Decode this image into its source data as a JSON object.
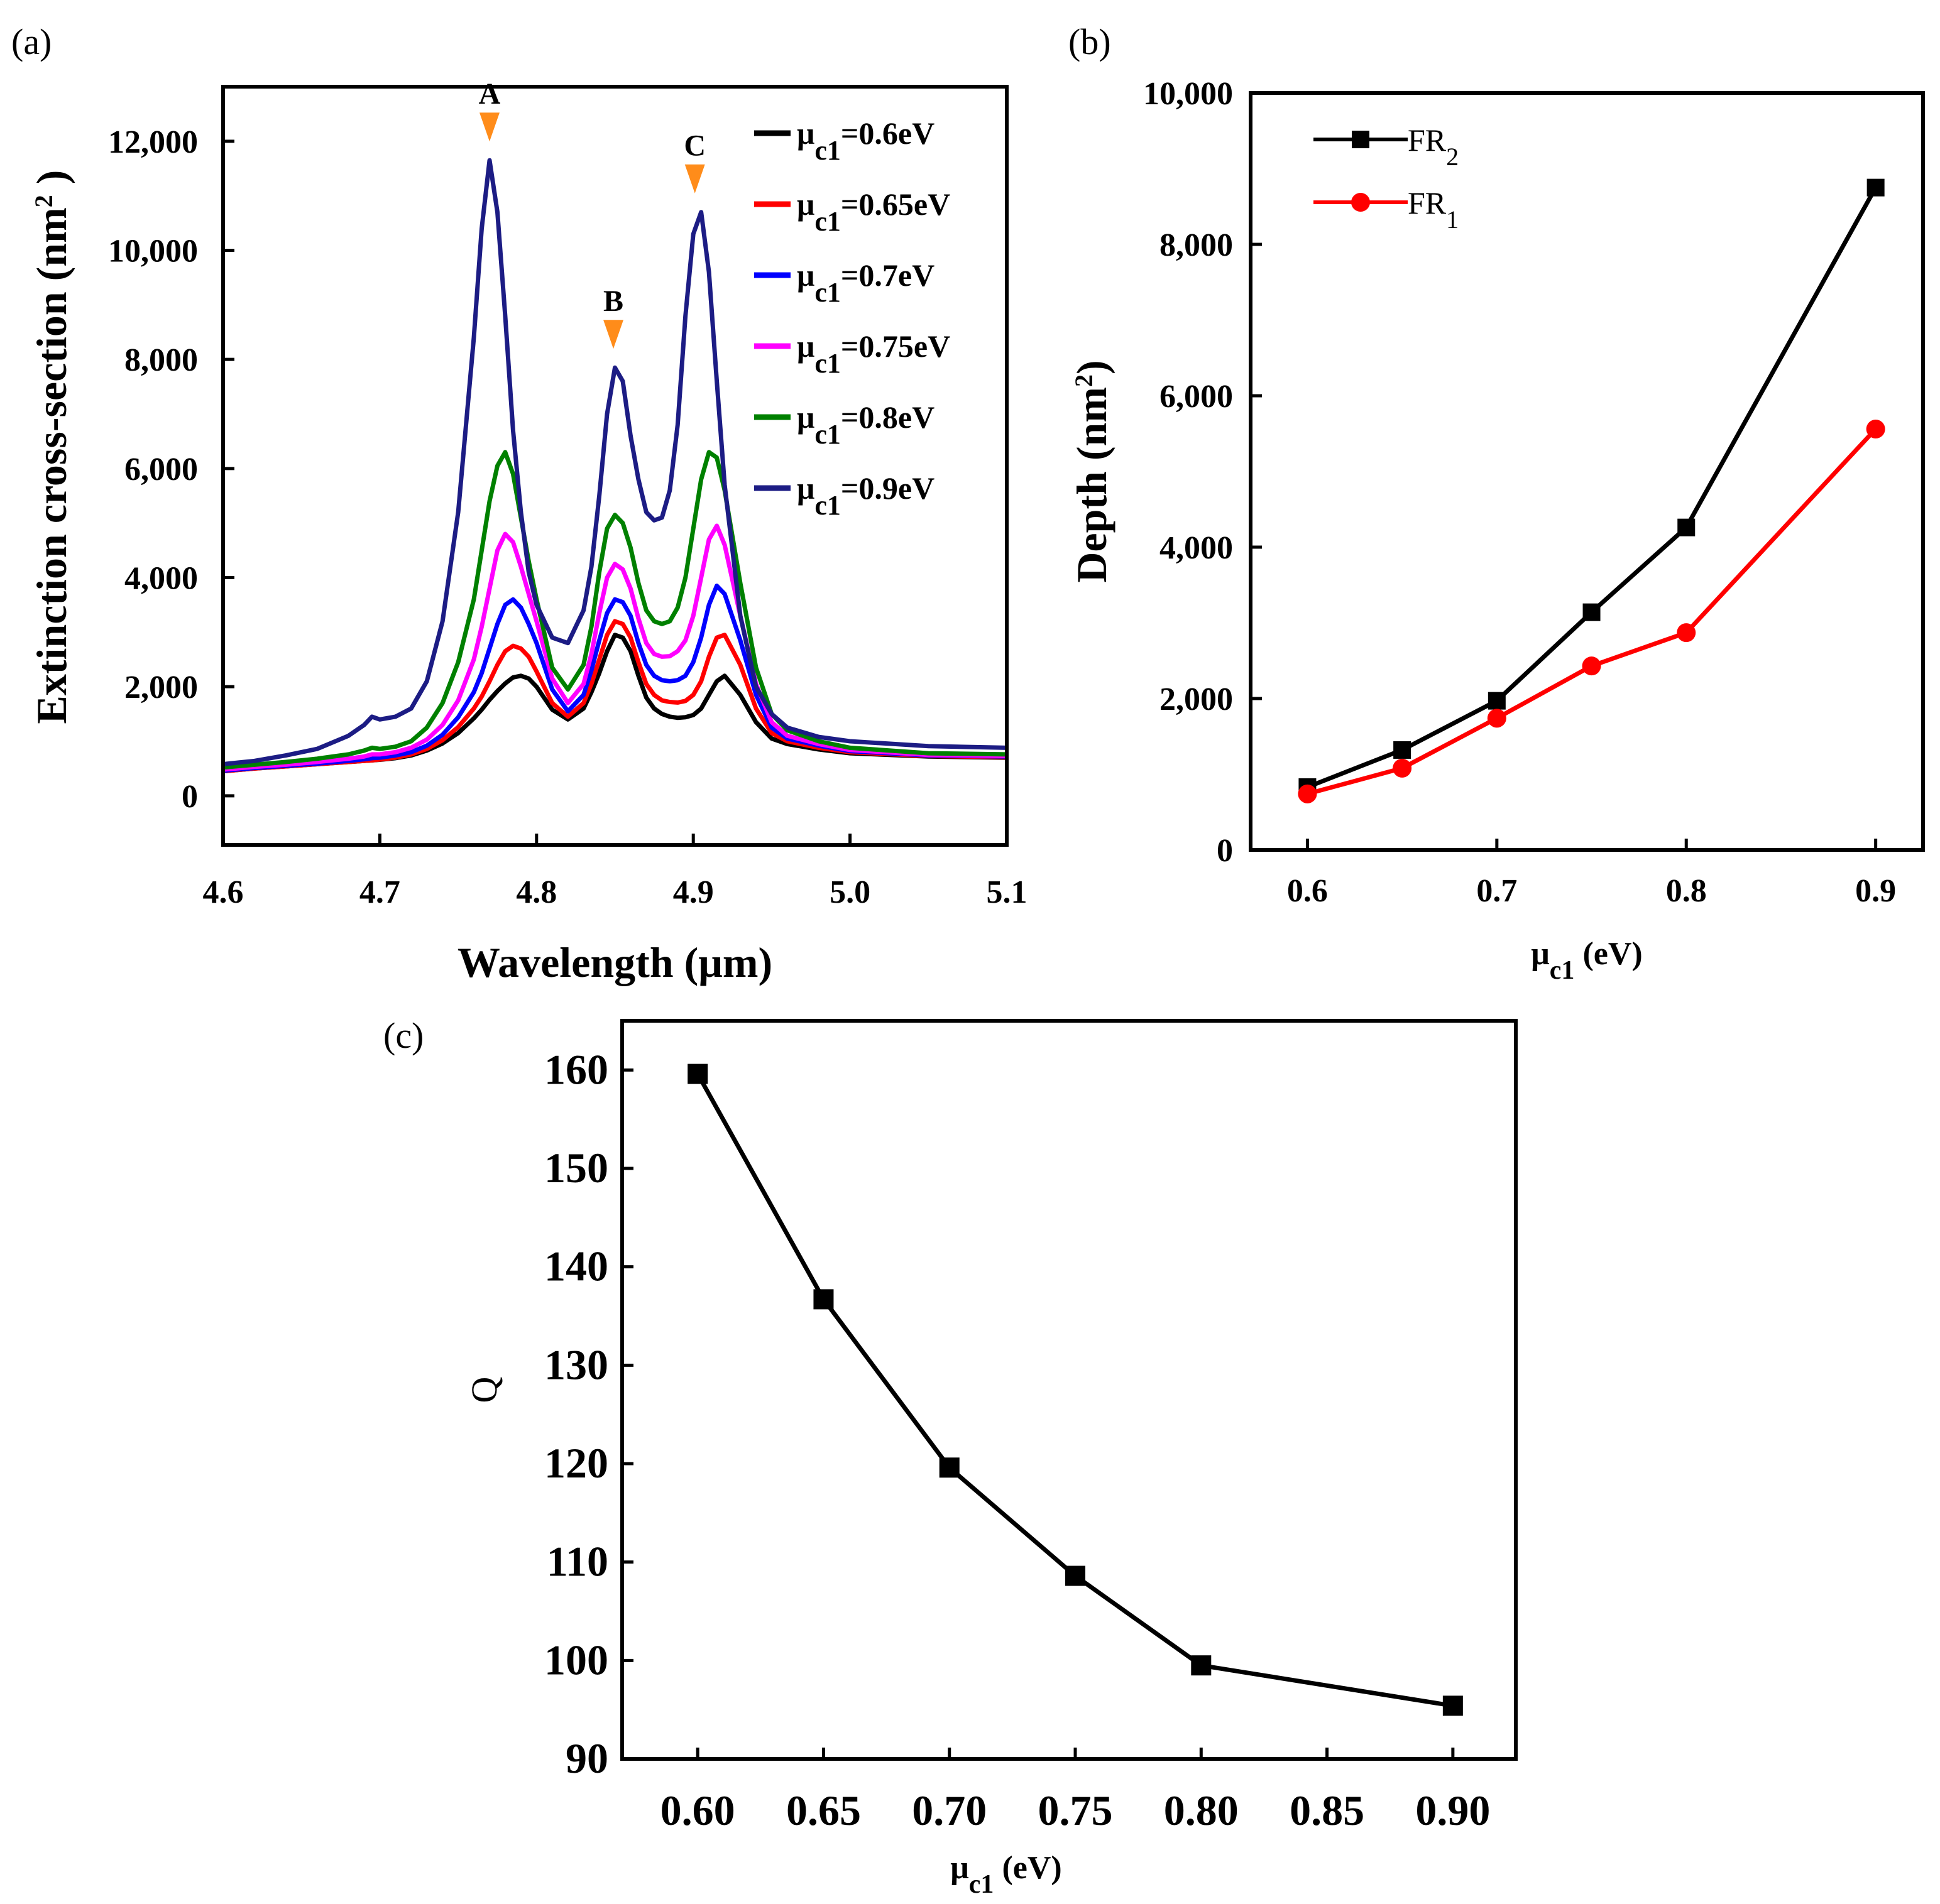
{
  "panels": {
    "a": "(a)",
    "b": "(b)",
    "c": "(c)"
  },
  "chart_data": [
    {
      "id": "a",
      "type": "line",
      "title": "",
      "xlabel": "Wavelength (μm)",
      "ylabel_main": "Extinction cross-section (nm",
      "ylabel_sup": "2",
      "ylabel_close": " )",
      "xlim": [
        4.6,
        5.1
      ],
      "ylim": [
        -900,
        13000
      ],
      "xticks": [
        4.6,
        4.7,
        4.8,
        4.9,
        5.0,
        5.1
      ],
      "xtick_labels": [
        "4.6",
        "4.7",
        "4.8",
        "4.9",
        "5.0",
        "5.1"
      ],
      "yticks": [
        0,
        2000,
        4000,
        6000,
        8000,
        10000,
        12000
      ],
      "ytick_labels": [
        "0",
        "2,000",
        "4,000",
        "6,000",
        "8,000",
        "10,000",
        "12,000"
      ],
      "legend_position": "top-right",
      "peaks": [
        {
          "label": "A",
          "x": 4.77,
          "y": 11650,
          "color": "#ff8c1a"
        },
        {
          "label": "B",
          "x": 4.849,
          "y": 7850,
          "color": "#ff8c1a"
        },
        {
          "label": "C",
          "x": 4.901,
          "y": 10700,
          "color": "#ff8c1a"
        }
      ],
      "x": [
        4.6,
        4.62,
        4.64,
        4.66,
        4.68,
        4.69,
        4.695,
        4.7,
        4.71,
        4.72,
        4.73,
        4.74,
        4.75,
        4.76,
        4.765,
        4.77,
        4.775,
        4.78,
        4.785,
        4.79,
        4.795,
        4.8,
        4.81,
        4.82,
        4.83,
        4.835,
        4.84,
        4.845,
        4.85,
        4.855,
        4.86,
        4.865,
        4.87,
        4.875,
        4.88,
        4.885,
        4.89,
        4.895,
        4.9,
        4.905,
        4.91,
        4.915,
        4.92,
        4.93,
        4.94,
        4.95,
        4.96,
        4.98,
        5.0,
        5.05,
        5.1
      ],
      "series": [
        {
          "name_main": "μ",
          "name_sub": "c1",
          "name_rest": "=0.6eV",
          "color": "#000000",
          "values": [
            450,
            500,
            540,
            580,
            620,
            640,
            650,
            660,
            690,
            740,
            830,
            960,
            1150,
            1420,
            1580,
            1760,
            1920,
            2060,
            2170,
            2200,
            2150,
            2000,
            1580,
            1400,
            1600,
            1900,
            2250,
            2650,
            2950,
            2900,
            2650,
            2200,
            1800,
            1600,
            1500,
            1450,
            1430,
            1440,
            1480,
            1600,
            1850,
            2100,
            2200,
            1850,
            1350,
            1050,
            950,
            850,
            780,
            720,
            700
          ]
        },
        {
          "name_main": "μ",
          "name_sub": "c1",
          "name_rest": "=0.65eV",
          "color": "#ff0000",
          "values": [
            450,
            500,
            540,
            580,
            620,
            640,
            650,
            665,
            700,
            760,
            860,
            1020,
            1260,
            1600,
            1820,
            2100,
            2400,
            2650,
            2750,
            2700,
            2550,
            2280,
            1700,
            1450,
            1700,
            2050,
            2500,
            2950,
            3200,
            3150,
            2900,
            2450,
            2050,
            1850,
            1750,
            1720,
            1710,
            1740,
            1850,
            2100,
            2550,
            2900,
            2950,
            2400,
            1600,
            1150,
            1000,
            880,
            800,
            730,
            710
          ]
        },
        {
          "name_main": "μ",
          "name_sub": "c1",
          "name_rest": "=0.7eV",
          "color": "#0000ff",
          "values": [
            460,
            510,
            550,
            590,
            640,
            670,
            690,
            700,
            740,
            800,
            920,
            1120,
            1440,
            1900,
            2250,
            2700,
            3150,
            3500,
            3600,
            3450,
            3150,
            2800,
            1950,
            1550,
            1850,
            2300,
            2850,
            3350,
            3600,
            3550,
            3300,
            2800,
            2400,
            2200,
            2120,
            2100,
            2120,
            2200,
            2450,
            2900,
            3500,
            3850,
            3700,
            2850,
            1850,
            1250,
            1050,
            920,
            820,
            740,
            720
          ]
        },
        {
          "name_main": "μ",
          "name_sub": "c1",
          "name_rest": "=0.75eV",
          "color": "#ff00ff",
          "values": [
            480,
            530,
            570,
            620,
            680,
            720,
            760,
            760,
            800,
            880,
            1030,
            1300,
            1750,
            2500,
            3100,
            3800,
            4500,
            4800,
            4650,
            4200,
            3700,
            3200,
            2150,
            1700,
            2050,
            2600,
            3350,
            4000,
            4250,
            4150,
            3800,
            3250,
            2800,
            2600,
            2550,
            2560,
            2650,
            2850,
            3300,
            4000,
            4700,
            4950,
            4600,
            3300,
            2050,
            1350,
            1100,
            950,
            840,
            750,
            730
          ]
        },
        {
          "name_main": "μ",
          "name_sub": "c1",
          "name_rest": "=0.8eV",
          "color": "#008000",
          "values": [
            520,
            570,
            620,
            680,
            760,
            830,
            880,
            860,
            900,
            1000,
            1250,
            1700,
            2450,
            3600,
            4500,
            5400,
            6050,
            6300,
            5900,
            5100,
            4300,
            3600,
            2350,
            1950,
            2400,
            3100,
            4100,
            4900,
            5150,
            5000,
            4550,
            3900,
            3400,
            3200,
            3150,
            3200,
            3450,
            4000,
            4900,
            5800,
            6300,
            6200,
            5600,
            3900,
            2350,
            1500,
            1200,
            1000,
            880,
            780,
            760
          ]
        },
        {
          "name_main": "μ",
          "name_sub": "c1",
          "name_rest": "=0.9eV",
          "color": "#1c1c84",
          "values": [
            580,
            640,
            740,
            860,
            1100,
            1300,
            1450,
            1400,
            1450,
            1600,
            2100,
            3200,
            5200,
            8400,
            10400,
            11650,
            10700,
            8800,
            6700,
            5200,
            4100,
            3500,
            2900,
            2800,
            3400,
            4200,
            5500,
            7000,
            7850,
            7600,
            6600,
            5800,
            5200,
            5050,
            5100,
            5600,
            6800,
            8800,
            10300,
            10700,
            9600,
            7600,
            5700,
            3300,
            2000,
            1500,
            1250,
            1080,
            1000,
            910,
            880
          ]
        }
      ]
    },
    {
      "id": "b",
      "type": "line",
      "xlabel_main": "μ",
      "xlabel_sub": "c1",
      "xlabel_rest": " (eV)",
      "ylabel_main": "Depth (nm",
      "ylabel_sup": "2",
      "ylabel_close": ")",
      "xlim": [
        0.57,
        0.925
      ],
      "ylim": [
        0,
        10000
      ],
      "xticks": [
        0.6,
        0.7,
        0.8,
        0.9
      ],
      "xtick_labels": [
        "0.6",
        "0.7",
        "0.8",
        "0.9"
      ],
      "yticks": [
        0,
        2000,
        4000,
        6000,
        8000,
        10000
      ],
      "ytick_labels": [
        "0",
        "2,000",
        "4,000",
        "6,000",
        "8,000",
        "10,000"
      ],
      "legend_position": "top-left",
      "x": [
        0.6,
        0.65,
        0.7,
        0.75,
        0.8,
        0.9
      ],
      "series": [
        {
          "name_main": "FR",
          "name_sub": "2",
          "color": "#000000",
          "marker": "square",
          "values": [
            830,
            1320,
            1970,
            3140,
            4260,
            8750
          ]
        },
        {
          "name_main": "FR",
          "name_sub": "1",
          "color": "#ff0000",
          "marker": "circle",
          "values": [
            740,
            1080,
            1740,
            2430,
            2870,
            5560
          ]
        }
      ]
    },
    {
      "id": "c",
      "type": "line",
      "xlabel_main": "μ",
      "xlabel_sub": "c1",
      "xlabel_rest": " (eV)",
      "ylabel": "Q",
      "xlim": [
        0.57,
        0.925
      ],
      "ylim": [
        90,
        165
      ],
      "xticks": [
        0.6,
        0.65,
        0.7,
        0.75,
        0.8,
        0.85,
        0.9
      ],
      "xtick_labels": [
        "0.60",
        "0.65",
        "0.70",
        "0.75",
        "0.80",
        "0.85",
        "0.90"
      ],
      "yticks": [
        90,
        100,
        110,
        120,
        130,
        140,
        150,
        160
      ],
      "ytick_labels": [
        "90",
        "100",
        "110",
        "120",
        "130",
        "140",
        "150",
        "160"
      ],
      "x": [
        0.6,
        0.65,
        0.7,
        0.75,
        0.8,
        0.9
      ],
      "series": [
        {
          "name": "Q",
          "color": "#000000",
          "marker": "square",
          "values": [
            159.6,
            136.7,
            119.6,
            108.6,
            99.5,
            95.4
          ]
        }
      ]
    }
  ]
}
